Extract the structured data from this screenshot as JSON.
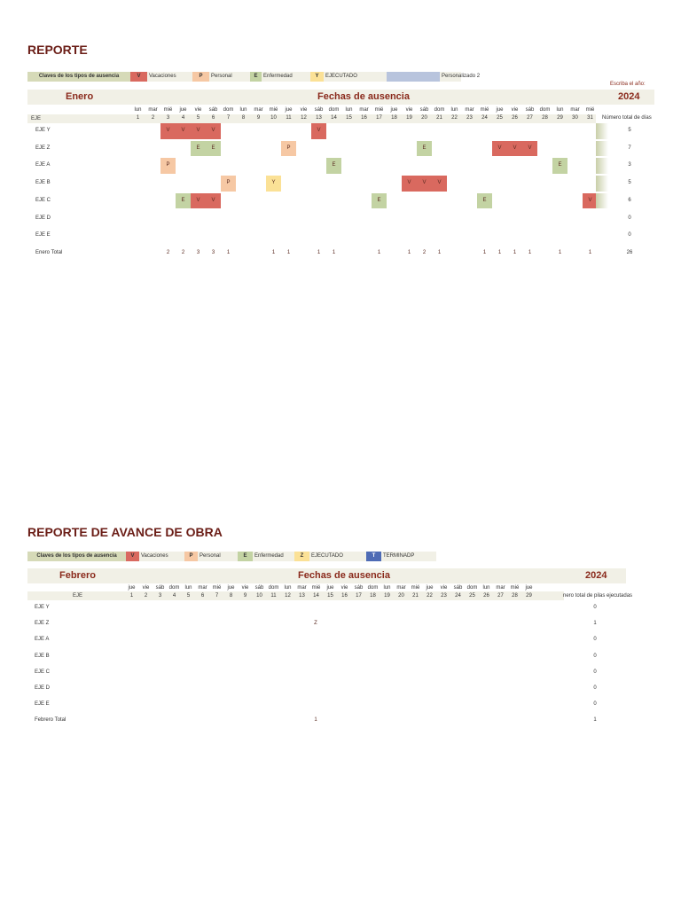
{
  "colors": {
    "V": "#d9695f",
    "P": "#f6c8a4",
    "E": "#c3d3a3",
    "Y": "#fbe196",
    "Z": "#fbe196",
    "T": "#4e6bb5",
    "C": "#b8c4dd"
  },
  "report1": {
    "title": "REPORTE",
    "legend": [
      {
        "text": "Claves de los tipos de ausencia"
      },
      {
        "key": "V",
        "label": "Vacaciones"
      },
      {
        "key": "P",
        "label": "Personal"
      },
      {
        "key": "E",
        "label": "Enfermedad"
      },
      {
        "key": "Y",
        "label": "EJECUTADO"
      },
      {
        "key": "",
        "label": "Personalizado 2",
        "color": "C"
      }
    ],
    "year_label": "Escriba el año:",
    "month": "Enero",
    "heading": "Fechas de ausencia",
    "year": "2024",
    "eje_label": "EJE",
    "total_col_label": "Número total de días",
    "days": [
      "lun",
      "mar",
      "mié",
      "jue",
      "vie",
      "sáb",
      "dom",
      "lun",
      "mar",
      "mié",
      "jue",
      "vie",
      "sáb",
      "dom",
      "lun",
      "mar",
      "mié",
      "jue",
      "vie",
      "sáb",
      "dom",
      "lun",
      "mar",
      "mié",
      "jue",
      "vie",
      "sáb",
      "dom",
      "lun",
      "mar",
      "mié"
    ],
    "rows": [
      {
        "name": "EJE Y",
        "cells": {
          "3": "V",
          "4": "V",
          "5": "V",
          "6": "V",
          "13": "V"
        },
        "total": "5"
      },
      {
        "name": "EJE Z",
        "cells": {
          "5": "E",
          "6": "E",
          "11": "P",
          "20": "E",
          "25": "V",
          "26": "V",
          "27": "V"
        },
        "total": "7"
      },
      {
        "name": "EJE A",
        "cells": {
          "3": "P",
          "14": "E",
          "29": "E"
        },
        "total": "3"
      },
      {
        "name": "EJE B",
        "cells": {
          "7": "P",
          "10": "Y",
          "19": "V",
          "20": "V",
          "21": "V"
        },
        "total": "5"
      },
      {
        "name": "EJE C",
        "cells": {
          "4": "E",
          "5": "V",
          "6": "V",
          "17": "E",
          "24": "E",
          "31": "V"
        },
        "total": "6"
      },
      {
        "name": "EJE D",
        "cells": {},
        "total": "0"
      },
      {
        "name": "EJE E",
        "cells": {},
        "total": "0"
      }
    ],
    "total_row": {
      "name": "Enero Total",
      "cells": {
        "3": "2",
        "4": "2",
        "5": "3",
        "6": "3",
        "7": "1",
        "10": "1",
        "11": "1",
        "13": "1",
        "14": "1",
        "17": "1",
        "19": "1",
        "20": "2",
        "21": "1",
        "24": "1",
        "25": "1",
        "26": "1",
        "27": "1",
        "29": "1",
        "31": "1"
      },
      "total": "26"
    }
  },
  "report2": {
    "title": "REPORTE DE AVANCE DE OBRA",
    "legend": [
      {
        "text": "Claves de los tipos de ausencia"
      },
      {
        "key": "V",
        "label": "Vacaciones"
      },
      {
        "key": "P",
        "label": "Personal"
      },
      {
        "key": "E",
        "label": "Enfermedad"
      },
      {
        "key": "Z",
        "label": "EJECUTADO"
      },
      {
        "key": "T",
        "label": "TERMINADP"
      }
    ],
    "month": "Febrero",
    "heading": "Fechas de ausencia",
    "year": "2024",
    "eje_label": "EJE",
    "total_col_label": "nero total de pilas ejecutadas",
    "days": [
      "jue",
      "vie",
      "sáb",
      "dom",
      "lun",
      "mar",
      "mié",
      "jue",
      "vie",
      "sáb",
      "dom",
      "lun",
      "mar",
      "mié",
      "jue",
      "vie",
      "sáb",
      "dom",
      "lun",
      "mar",
      "mié",
      "jue",
      "vie",
      "sáb",
      "dom",
      "lun",
      "mar",
      "mié",
      "jue"
    ],
    "rows": [
      {
        "name": "EJE Y",
        "cells": {},
        "total": "0"
      },
      {
        "name": "EJE Z",
        "cells": {
          "14": "Z"
        },
        "total": "1"
      },
      {
        "name": "EJE A",
        "cells": {},
        "total": "0"
      },
      {
        "name": "EJE B",
        "cells": {},
        "total": "0"
      },
      {
        "name": "EJE C",
        "cells": {},
        "total": "0"
      },
      {
        "name": "EJE D",
        "cells": {},
        "total": "0"
      },
      {
        "name": "EJE E",
        "cells": {},
        "total": "0"
      }
    ],
    "total_row": {
      "name": "Febrero Total",
      "cells": {
        "14": "1"
      },
      "total": "1"
    }
  }
}
